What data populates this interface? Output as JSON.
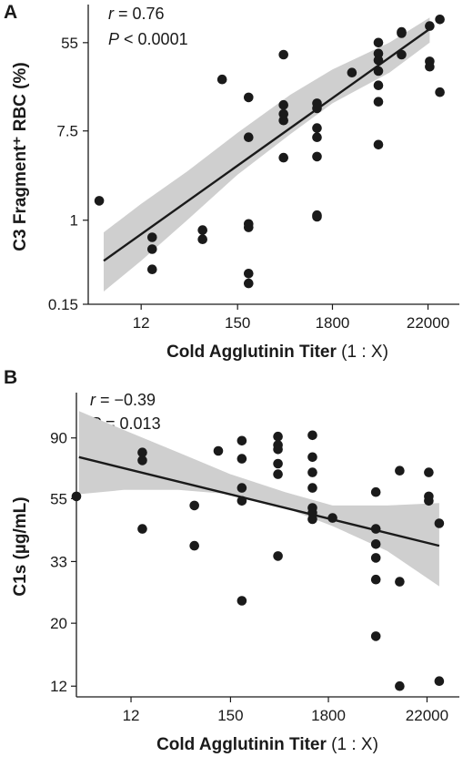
{
  "chart_data": [
    {
      "panel": "A",
      "type": "scatter",
      "xlabel": "Cold Agglutinin Titer",
      "xlabel_paren": "(1 : X)",
      "ylabel": "C3 Fragment⁺ RBC (%)",
      "x_scale": "log",
      "y_scale": "log",
      "xlim": [
        3,
        50000
      ],
      "ylim": [
        0.15,
        130
      ],
      "x_ticks": [
        12,
        150,
        1800,
        22000
      ],
      "x_tick_labels": [
        "12",
        "150",
        "1800",
        "22000"
      ],
      "y_ticks": [
        0.15,
        1,
        7.5,
        55
      ],
      "y_tick_labels": [
        "0.15",
        "1",
        "7.5",
        "55"
      ],
      "stats": {
        "r_label": "r",
        "r_text": " =  0.76",
        "p_label": "P",
        "p_text": " <  0.0001"
      },
      "regression": {
        "x": [
          4.5,
          23000
        ],
        "y": [
          0.4,
          75
        ]
      },
      "confidence_band": {
        "x": [
          4.5,
          12,
          40,
          150,
          600,
          1800,
          8000,
          23000
        ],
        "upper": [
          0.76,
          1.45,
          3.0,
          7.2,
          17,
          30,
          55,
          97
        ],
        "lower": [
          0.2,
          0.4,
          1.0,
          2.8,
          7.0,
          14,
          28,
          55
        ]
      },
      "points": [
        [
          4,
          1.55
        ],
        [
          16,
          0.68
        ],
        [
          16,
          0.52
        ],
        [
          16,
          0.33
        ],
        [
          60,
          0.8
        ],
        [
          60,
          0.65
        ],
        [
          100,
          24
        ],
        [
          200,
          16
        ],
        [
          200,
          6.5
        ],
        [
          200,
          0.92
        ],
        [
          200,
          0.85
        ],
        [
          200,
          0.3
        ],
        [
          200,
          0.24
        ],
        [
          500,
          42
        ],
        [
          500,
          13.5
        ],
        [
          500,
          11
        ],
        [
          500,
          9.5
        ],
        [
          500,
          4.1
        ],
        [
          1200,
          14
        ],
        [
          1200,
          12.5
        ],
        [
          1200,
          8
        ],
        [
          1200,
          6.5
        ],
        [
          1200,
          4.2
        ],
        [
          1200,
          1.12
        ],
        [
          1200,
          1.08
        ],
        [
          3000,
          28
        ],
        [
          6000,
          55
        ],
        [
          6000,
          43
        ],
        [
          6000,
          37
        ],
        [
          6000,
          29
        ],
        [
          6000,
          21
        ],
        [
          6000,
          14.5
        ],
        [
          6000,
          5.5
        ],
        [
          11000,
          70
        ],
        [
          11000,
          68
        ],
        [
          11000,
          42
        ],
        [
          23000,
          80
        ],
        [
          23000,
          36
        ],
        [
          23000,
          32
        ],
        [
          30000,
          93
        ],
        [
          30000,
          18
        ]
      ]
    },
    {
      "panel": "B",
      "type": "scatter",
      "xlabel": "Cold Agglutinin Titer",
      "xlabel_paren": "(1 : X)",
      "ylabel": "C1s (µg/mL)",
      "x_scale": "log",
      "y_scale": "log",
      "xlim": [
        3,
        50000
      ],
      "ylim": [
        11,
        130
      ],
      "x_ticks": [
        12,
        150,
        1800,
        22000
      ],
      "x_tick_labels": [
        "12",
        "150",
        "1800",
        "22000"
      ],
      "y_ticks": [
        12,
        20,
        33,
        55,
        90
      ],
      "y_tick_labels": [
        "12",
        "20",
        "33",
        "55",
        "90"
      ],
      "stats": {
        "r_label": "r",
        "r_text": " = −0.39",
        "p_label": "P",
        "p_text": " =  0.013"
      },
      "regression": {
        "x": [
          3.2,
          30000
        ],
        "y": [
          77,
          37.5
        ]
      },
      "confidence_band": {
        "x": [
          3.2,
          10,
          40,
          150,
          600,
          2000,
          8000,
          30000
        ],
        "upper": [
          112,
          96,
          80,
          67,
          58,
          52,
          52,
          53
        ],
        "lower": [
          57,
          59,
          59,
          57,
          51,
          44,
          36,
          27
        ]
      },
      "points": [
        [
          3,
          56
        ],
        [
          16,
          80
        ],
        [
          16,
          75
        ],
        [
          16,
          43
        ],
        [
          60,
          52
        ],
        [
          60,
          37.5
        ],
        [
          110,
          81
        ],
        [
          200,
          88
        ],
        [
          200,
          76
        ],
        [
          200,
          60
        ],
        [
          200,
          54
        ],
        [
          200,
          24
        ],
        [
          500,
          91
        ],
        [
          500,
          85
        ],
        [
          500,
          82
        ],
        [
          500,
          73
        ],
        [
          500,
          67
        ],
        [
          500,
          34.5
        ],
        [
          1200,
          92
        ],
        [
          1200,
          77
        ],
        [
          1200,
          68
        ],
        [
          1200,
          60
        ],
        [
          1200,
          51
        ],
        [
          1200,
          49
        ],
        [
          1200,
          46.5
        ],
        [
          2000,
          47
        ],
        [
          6000,
          58
        ],
        [
          6000,
          43
        ],
        [
          6000,
          38
        ],
        [
          6000,
          34
        ],
        [
          6000,
          28.5
        ],
        [
          6000,
          18
        ],
        [
          11000,
          69
        ],
        [
          11000,
          28
        ],
        [
          11000,
          12
        ],
        [
          23000,
          68
        ],
        [
          23000,
          56
        ],
        [
          23000,
          54
        ],
        [
          30000,
          45
        ],
        [
          30000,
          12.5
        ]
      ]
    }
  ]
}
